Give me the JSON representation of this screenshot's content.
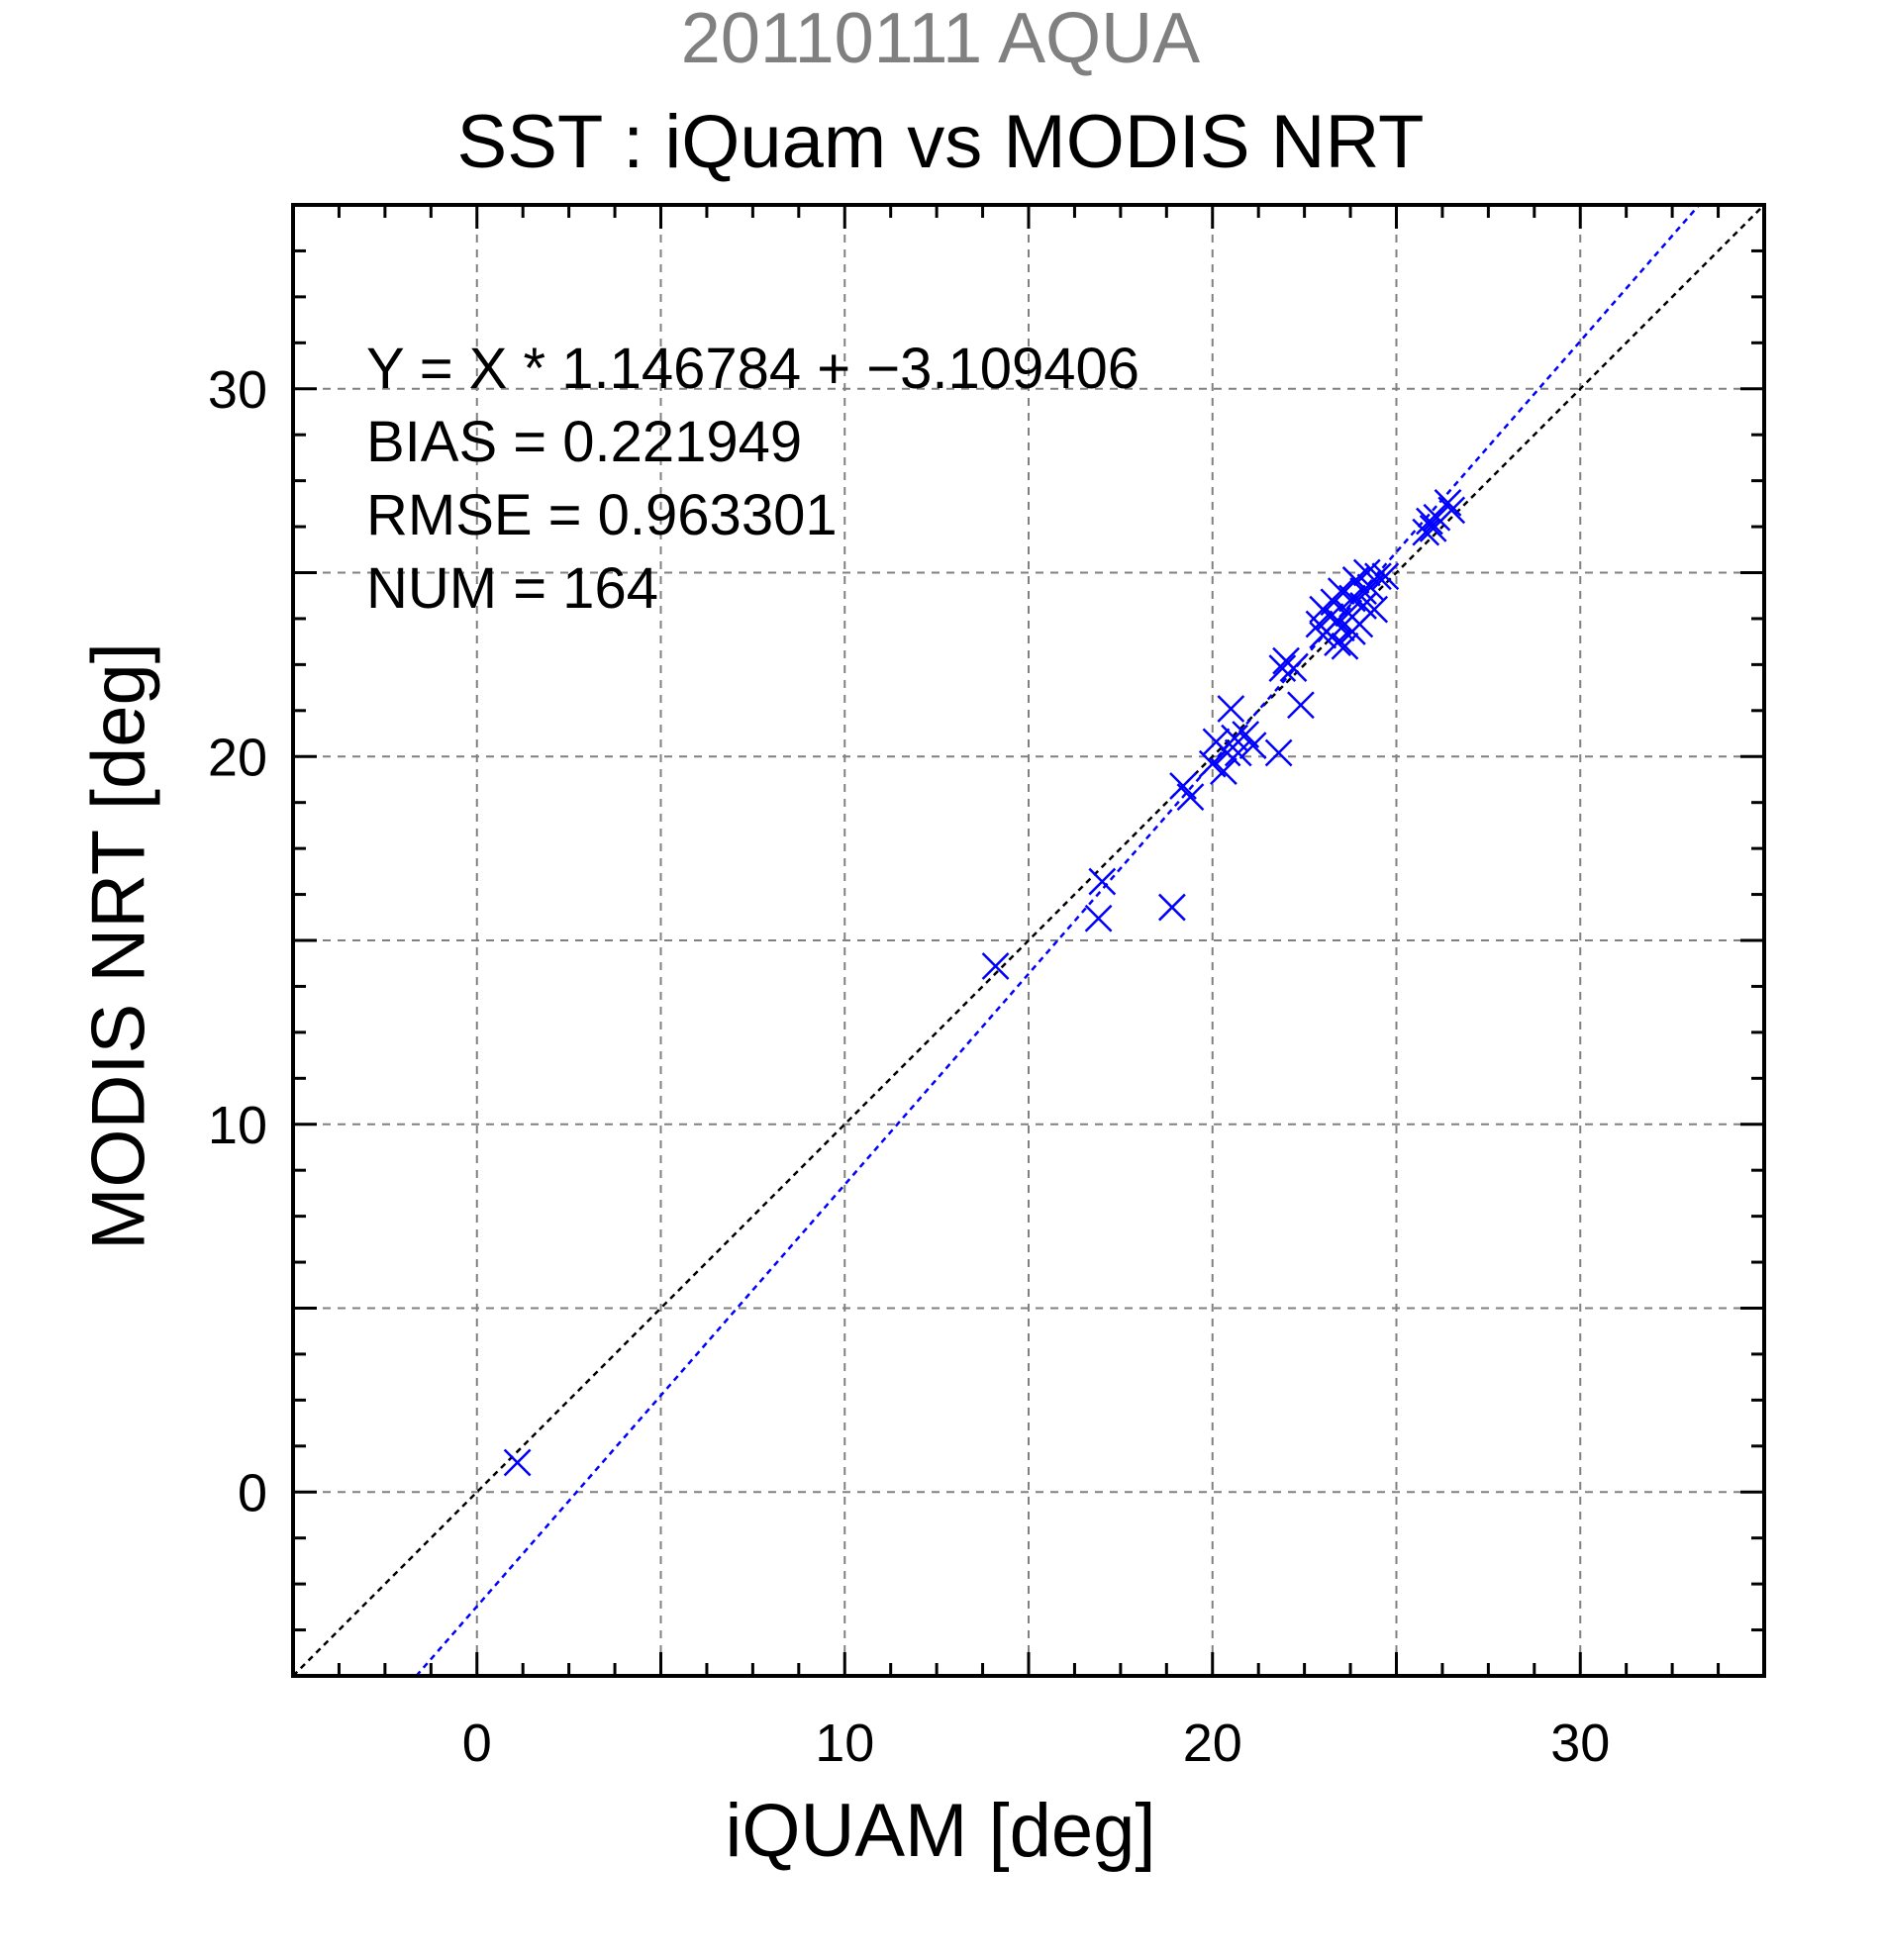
{
  "chart_data": {
    "type": "scatter",
    "title": "20110111 AQUA",
    "subtitle": "SST : iQuam vs MODIS NRT",
    "xlabel": "iQUAM [deg]",
    "ylabel": "MODIS NRT [deg]",
    "xlim": [
      -5,
      35
    ],
    "ylim": [
      -5,
      35
    ],
    "x_ticks": [
      0,
      10,
      20,
      30
    ],
    "y_ticks": [
      0,
      10,
      20,
      30
    ],
    "grid": true,
    "colors": {
      "points": "#0000ff",
      "fit_line": "#0000ff",
      "identity_line": "#000000",
      "grid": "#808080"
    },
    "marker": "x",
    "fit": {
      "slope": 1.146784,
      "intercept": -3.109406
    },
    "annotations": [
      "Y = X * 1.146784 + −3.109406",
      "BIAS = 0.221949",
      "RMSE = 0.963301",
      "NUM = 164"
    ],
    "series": [
      {
        "values": [
          [
            1.1,
            0.8
          ],
          [
            14.1,
            14.3
          ],
          [
            16.9,
            15.6
          ],
          [
            17.0,
            16.6
          ],
          [
            18.9,
            15.9
          ],
          [
            19.2,
            19.2
          ],
          [
            19.4,
            18.9
          ],
          [
            20.0,
            19.8
          ],
          [
            20.1,
            20.4
          ],
          [
            20.3,
            19.6
          ],
          [
            20.4,
            20.1
          ],
          [
            20.5,
            21.3
          ],
          [
            20.6,
            20.5
          ],
          [
            20.7,
            20.1
          ],
          [
            20.9,
            20.6
          ],
          [
            21.1,
            20.3
          ],
          [
            21.8,
            20.1
          ],
          [
            21.9,
            22.4
          ],
          [
            22.0,
            22.6
          ],
          [
            22.2,
            22.4
          ],
          [
            22.4,
            21.4
          ],
          [
            22.9,
            23.6
          ],
          [
            23.0,
            24.0
          ],
          [
            23.1,
            23.4
          ],
          [
            23.2,
            23.8
          ],
          [
            23.3,
            24.2
          ],
          [
            23.4,
            23.1
          ],
          [
            23.5,
            23.5
          ],
          [
            23.5,
            24.5
          ],
          [
            23.6,
            23.0
          ],
          [
            23.7,
            23.9
          ],
          [
            23.8,
            24.3
          ],
          [
            23.9,
            24.8
          ],
          [
            24.0,
            23.6
          ],
          [
            24.1,
            24.1
          ],
          [
            24.2,
            25.0
          ],
          [
            24.3,
            24.6
          ],
          [
            24.4,
            24.0
          ],
          [
            24.5,
            24.9
          ],
          [
            24.7,
            24.9
          ],
          [
            25.8,
            26.1
          ],
          [
            25.9,
            26.4
          ],
          [
            26.0,
            26.2
          ],
          [
            26.1,
            26.5
          ],
          [
            26.4,
            26.9
          ],
          [
            26.5,
            26.7
          ],
          [
            23.0,
            23.3
          ],
          [
            23.4,
            23.7
          ],
          [
            23.8,
            23.4
          ],
          [
            24.1,
            24.5
          ]
        ]
      }
    ]
  }
}
